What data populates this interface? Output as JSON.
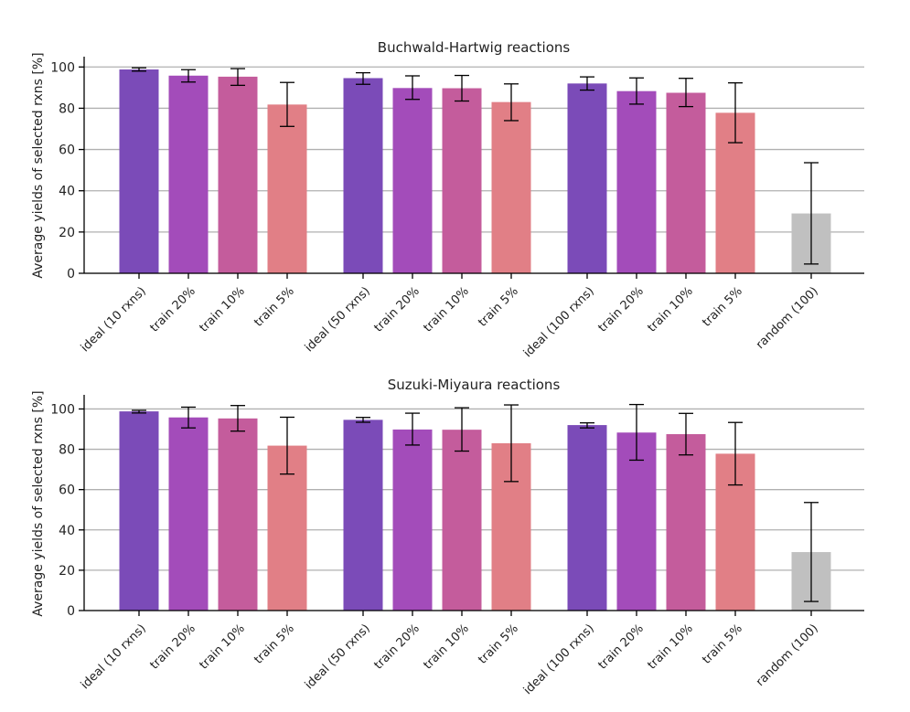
{
  "chart_data": [
    {
      "type": "bar",
      "title": "Buchwald-Hartwig reactions",
      "ylabel": "Average yields of selected rxns [%]",
      "xlabel": "",
      "ylim": [
        0,
        105
      ],
      "yticks": [
        0,
        20,
        40,
        60,
        80,
        100
      ],
      "grid": true,
      "categories": [
        "ideal (10 rxns)",
        "train 20%",
        "train 10%",
        "train 5%",
        "ideal (50 rxns)",
        "train 20%",
        "train 10%",
        "train 5%",
        "ideal (100 rxns)",
        "train 20%",
        "train 10%",
        "train 5%",
        "random (100)"
      ],
      "groups": [
        0,
        0,
        0,
        0,
        1,
        1,
        1,
        1,
        2,
        2,
        2,
        2,
        3
      ],
      "values": [
        98.8,
        95.8,
        95.3,
        81.8,
        94.6,
        89.8,
        89.7,
        83.0,
        92.0,
        88.3,
        87.5,
        77.8,
        29.0
      ],
      "errors": [
        [
          98.0,
          99.6
        ],
        [
          92.7,
          98.7
        ],
        [
          91.1,
          99.2
        ],
        [
          71.2,
          92.5
        ],
        [
          91.6,
          97.2
        ],
        [
          84.3,
          95.7
        ],
        [
          83.5,
          95.9
        ],
        [
          74.0,
          91.8
        ],
        [
          88.8,
          95.2
        ],
        [
          82.0,
          94.7
        ],
        [
          80.8,
          94.5
        ],
        [
          63.3,
          92.3
        ],
        [
          4.5,
          53.6
        ]
      ],
      "colors": [
        "#7b4bb8",
        "#a34cba",
        "#c45c9c",
        "#e17f86",
        "#7b4bb8",
        "#a34cba",
        "#c45c9c",
        "#e17f86",
        "#7b4bb8",
        "#a34cba",
        "#c45c9c",
        "#e17f86",
        "#c0c0c0"
      ]
    },
    {
      "type": "bar",
      "title": "Suzuki-Miyaura reactions",
      "ylabel": "Average yields of selected rxns [%]",
      "xlabel": "",
      "ylim": [
        0,
        107
      ],
      "yticks": [
        0,
        20,
        40,
        60,
        80,
        100
      ],
      "grid": true,
      "categories": [
        "ideal (10 rxns)",
        "train 20%",
        "train 10%",
        "train 5%",
        "ideal (50 rxns)",
        "train 20%",
        "train 10%",
        "train 5%",
        "ideal (100 rxns)",
        "train 20%",
        "train 10%",
        "train 5%",
        "random (100)"
      ],
      "groups": [
        0,
        0,
        0,
        0,
        1,
        1,
        1,
        1,
        2,
        2,
        2,
        2,
        3
      ],
      "values": [
        98.8,
        95.8,
        95.3,
        81.8,
        94.6,
        89.8,
        89.7,
        83.0,
        92.0,
        88.3,
        87.5,
        77.8,
        29.0
      ],
      "errors": [
        [
          98.0,
          99.3
        ],
        [
          90.6,
          100.9
        ],
        [
          89.0,
          101.7
        ],
        [
          67.7,
          95.9
        ],
        [
          93.4,
          95.8
        ],
        [
          82.1,
          97.9
        ],
        [
          79.1,
          100.6
        ],
        [
          64.0,
          102.0
        ],
        [
          90.6,
          93.1
        ],
        [
          74.6,
          102.2
        ],
        [
          77.2,
          97.8
        ],
        [
          62.3,
          93.3
        ],
        [
          4.5,
          53.6
        ]
      ],
      "colors": [
        "#7b4bb8",
        "#a34cba",
        "#c45c9c",
        "#e17f86",
        "#7b4bb8",
        "#a34cba",
        "#c45c9c",
        "#e17f86",
        "#7b4bb8",
        "#a34cba",
        "#c45c9c",
        "#e17f86",
        "#c0c0c0"
      ]
    }
  ]
}
